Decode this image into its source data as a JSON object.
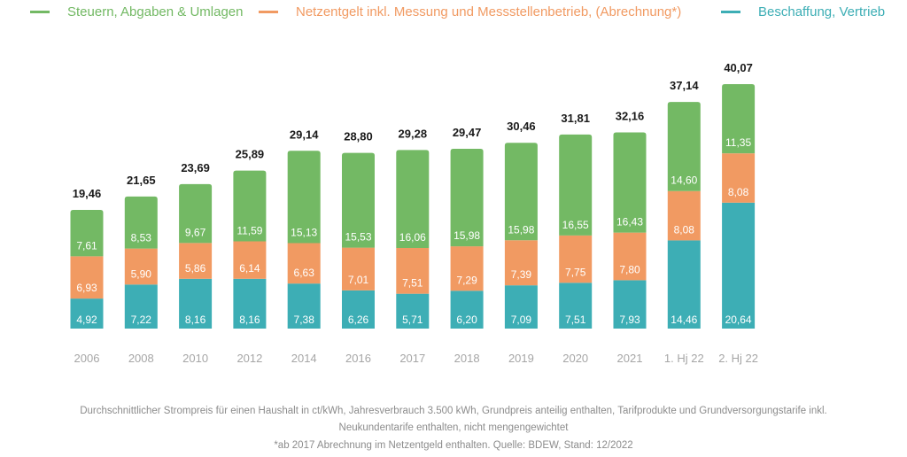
{
  "colors": {
    "taxes": "#73b964",
    "network": "#f19a62",
    "procurement": "#3daeb5",
    "total_label": "#1a1a1a",
    "segment_label": "#ffffff",
    "axis_label": "#a6a6a6",
    "footnote": "#8c8c8c"
  },
  "legend": [
    {
      "key": "taxes",
      "label": "Steuern, Abgaben & Umlagen"
    },
    {
      "key": "network",
      "label": "Netzentgelt inkl. Messung und Messstellenbetrieb, (Abrechnung*)"
    },
    {
      "key": "procurement",
      "label": "Beschaffung, Vertrieb"
    }
  ],
  "chart_data": {
    "type": "bar",
    "stacked": true,
    "title": "",
    "xlabel": "",
    "ylabel": "",
    "ylim": [
      0,
      40.07
    ],
    "grid": false,
    "legend_position": "top",
    "categories": [
      "2006",
      "2008",
      "2010",
      "2012",
      "2014",
      "2016",
      "2017",
      "2018",
      "2019",
      "2020",
      "2021",
      "1. Hj 22",
      "2. Hj 22"
    ],
    "series": [
      {
        "name": "Beschaffung, Vertrieb",
        "key": "procurement",
        "values": [
          4.92,
          7.22,
          8.16,
          8.16,
          7.38,
          6.26,
          5.71,
          6.2,
          7.09,
          7.51,
          7.93,
          14.46,
          20.64
        ],
        "labels": [
          "4,92",
          "7,22",
          "8,16",
          "8,16",
          "7,38",
          "6,26",
          "5,71",
          "6,20",
          "7,09",
          "7,51",
          "7,93",
          "14,46",
          "20,64"
        ]
      },
      {
        "name": "Netzentgelt inkl. Messung und Messstellenbetrieb, (Abrechnung*)",
        "key": "network",
        "values": [
          6.93,
          5.9,
          5.86,
          6.14,
          6.63,
          7.01,
          7.51,
          7.29,
          7.39,
          7.75,
          7.8,
          8.08,
          8.08
        ],
        "labels": [
          "6,93",
          "5,90",
          "5,86",
          "6,14",
          "6,63",
          "7,01",
          "7,51",
          "7,29",
          "7,39",
          "7,75",
          "7,80",
          "8,08",
          "8,08"
        ]
      },
      {
        "name": "Steuern, Abgaben & Umlagen",
        "key": "taxes",
        "values": [
          7.61,
          8.53,
          9.67,
          11.59,
          15.13,
          15.53,
          16.06,
          15.98,
          15.98,
          16.55,
          16.43,
          14.6,
          11.35
        ],
        "labels": [
          "7,61",
          "8,53",
          "9,67",
          "11,59",
          "15,13",
          "15,53",
          "16,06",
          "15,98",
          "15,98",
          "16,55",
          "16,43",
          "14,60",
          "11,35"
        ]
      }
    ],
    "totals": [
      19.46,
      21.65,
      23.69,
      25.89,
      29.14,
      28.8,
      29.28,
      29.47,
      30.46,
      31.81,
      32.16,
      37.14,
      40.07
    ],
    "total_labels": [
      "19,46",
      "21,65",
      "23,69",
      "25,89",
      "29,14",
      "28,80",
      "29,28",
      "29,47",
      "30,46",
      "31,81",
      "32,16",
      "37,14",
      "40,07"
    ]
  },
  "footnotes": [
    "Durchschnittlicher Strompreis für einen Haushalt in ct/kWh, Jahresverbrauch 3.500 kWh, Grundpreis anteilig enthalten, Tarifprodukte und Grundversorgungstarife inkl.",
    "Neukundentarife enthalten, nicht mengengewichtet",
    "*ab 2017 Abrechnung im Netzentgeld enthalten. Quelle: BDEW, Stand: 12/2022"
  ]
}
